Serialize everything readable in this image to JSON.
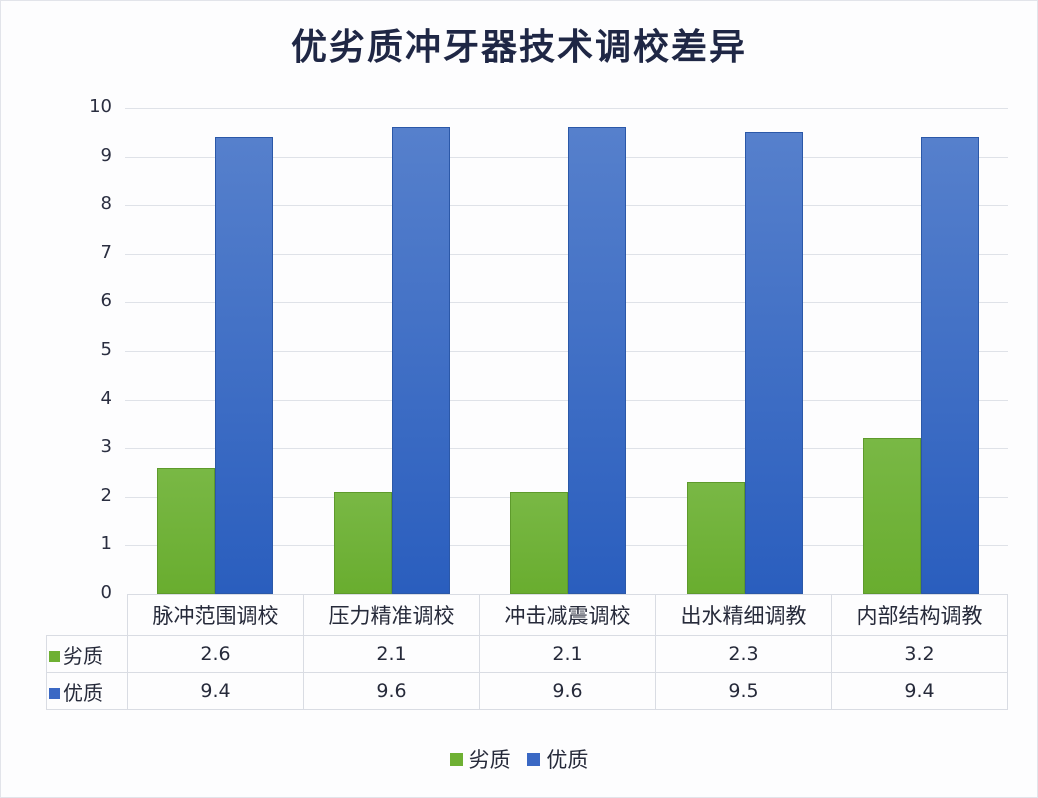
{
  "chart_data": {
    "type": "bar",
    "title": "优劣质冲牙器技术调校差异",
    "xlabel": "",
    "ylabel": "",
    "ylim": [
      0,
      10
    ],
    "yticks": [
      0,
      1,
      2,
      3,
      4,
      5,
      6,
      7,
      8,
      9,
      10
    ],
    "grid": true,
    "legend_position": "bottom",
    "data_table": true,
    "categories": [
      "脉冲范围调校",
      "压力精准调校",
      "冲击减震调校",
      "出水精细调教",
      "内部结构调教"
    ],
    "series": [
      {
        "name": "劣质",
        "color": "#6eb033",
        "values": [
          2.6,
          2.1,
          2.1,
          2.3,
          3.2
        ]
      },
      {
        "name": "优质",
        "color": "#3a68c4",
        "values": [
          9.4,
          9.6,
          9.6,
          9.5,
          9.4
        ]
      }
    ]
  },
  "table": {
    "values_text": [
      [
        "2.6",
        "2.1",
        "2.1",
        "2.3",
        "3.2"
      ],
      [
        "9.4",
        "9.6",
        "9.6",
        "9.5",
        "9.4"
      ]
    ]
  },
  "legend": {
    "items": [
      {
        "label": "劣质",
        "color": "#6eb033"
      },
      {
        "label": "优质",
        "color": "#3a68c4"
      }
    ]
  }
}
